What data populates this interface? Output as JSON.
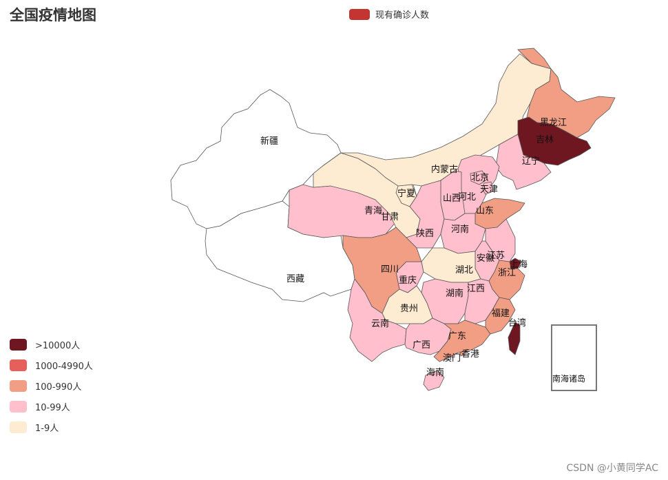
{
  "title": "全国疫情地图",
  "legend": {
    "series_name": "现有确诊人数",
    "color": "#c23531"
  },
  "visual_map": [
    {
      "label": ">10000人",
      "color": "#6f1721"
    },
    {
      "label": "1000-4990人",
      "color": "#e5605a"
    },
    {
      "label": "100-990人",
      "color": "#f29e85"
    },
    {
      "label": "10-99人",
      "color": "#ffbfcc"
    },
    {
      "label": "1-9人",
      "color": "#fdebd2"
    }
  ],
  "provinces": [
    {
      "name": "新疆",
      "level": "none"
    },
    {
      "name": "西藏",
      "level": "none"
    },
    {
      "name": "青海",
      "level": "10-99"
    },
    {
      "name": "甘肃",
      "level": "1-9"
    },
    {
      "name": "宁夏",
      "level": "1-9"
    },
    {
      "name": "内蒙古",
      "level": "1-9"
    },
    {
      "name": "黑龙江",
      "level": "100-990"
    },
    {
      "name": "吉林",
      "level": ">10000"
    },
    {
      "name": "辽宁",
      "level": "10-99"
    },
    {
      "name": "北京",
      "level": "10-99"
    },
    {
      "name": "天津",
      "level": "10-99"
    },
    {
      "name": "河北",
      "level": "10-99"
    },
    {
      "name": "山西",
      "level": "10-99"
    },
    {
      "name": "山东",
      "level": "100-990"
    },
    {
      "name": "陕西",
      "level": "10-99"
    },
    {
      "name": "河南",
      "level": "10-99"
    },
    {
      "name": "江苏",
      "level": "10-99"
    },
    {
      "name": "安徽",
      "level": "10-99"
    },
    {
      "name": "上海",
      "level": ">10000"
    },
    {
      "name": "浙江",
      "level": "100-990"
    },
    {
      "name": "湖北",
      "level": "1-9"
    },
    {
      "name": "四川",
      "level": "100-990"
    },
    {
      "name": "重庆",
      "level": "10-99"
    },
    {
      "name": "湖南",
      "level": "10-99"
    },
    {
      "name": "江西",
      "level": "10-99"
    },
    {
      "name": "贵州",
      "level": "1-9"
    },
    {
      "name": "云南",
      "level": "10-99"
    },
    {
      "name": "广西",
      "level": "10-99"
    },
    {
      "name": "广东",
      "level": "100-990"
    },
    {
      "name": "福建",
      "level": "100-990"
    },
    {
      "name": "台湾",
      "level": ">10000"
    },
    {
      "name": "香港",
      "level": "100-990"
    },
    {
      "name": "澳门",
      "level": "10-99"
    },
    {
      "name": "海南",
      "level": "10-99"
    }
  ],
  "inset_label": "南海诸岛",
  "watermark": "CSDN @小黄同学AC"
}
